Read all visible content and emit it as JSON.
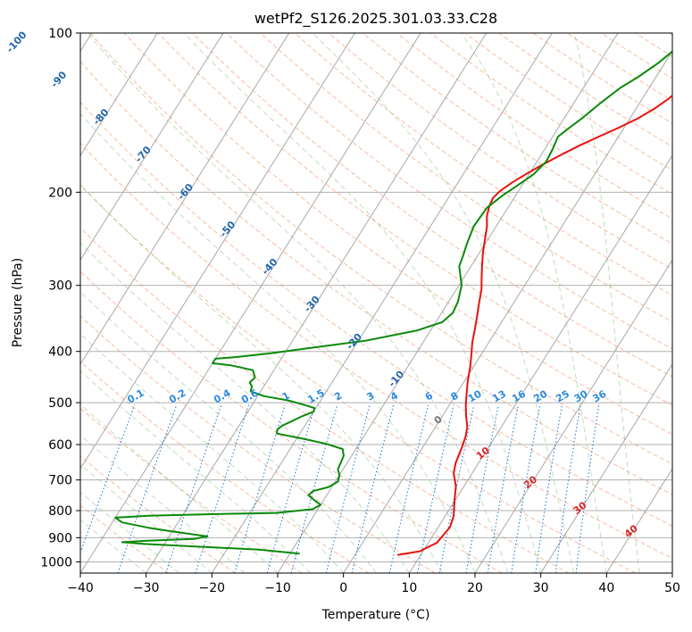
{
  "chart_data": {
    "type": "line",
    "title": "wetPf2_S126.2025.301.03.33.C28",
    "xlabel": "Temperature (°C)",
    "ylabel": "Pressure (hPa)",
    "xlim": [
      -40,
      50
    ],
    "ylim": [
      1050,
      100
    ],
    "y_scale": "log",
    "grid": true,
    "x_ticks": [
      -40,
      -30,
      -20,
      -10,
      0,
      10,
      20,
      30,
      40,
      50
    ],
    "y_ticks": [
      100,
      200,
      300,
      400,
      500,
      600,
      700,
      800,
      900,
      1000
    ],
    "series": [
      {
        "color": "#e8120c",
        "points": [
          [
            6.5,
            970
          ],
          [
            9.5,
            955
          ],
          [
            11.3,
            920
          ],
          [
            11.8,
            860
          ],
          [
            11.3,
            820
          ],
          [
            9.8,
            760
          ],
          [
            8.8,
            720
          ],
          [
            7.2,
            680
          ],
          [
            6.5,
            650
          ],
          [
            6.0,
            610
          ],
          [
            5.5,
            580
          ],
          [
            4.8,
            555
          ],
          [
            3.6,
            530
          ],
          [
            2.5,
            505
          ],
          [
            1.5,
            480
          ],
          [
            0.5,
            455
          ],
          [
            -0.4,
            430
          ],
          [
            -1.5,
            405
          ],
          [
            -2.5,
            385
          ],
          [
            -3.3,
            365
          ],
          [
            -4.2,
            345
          ],
          [
            -5.2,
            325
          ],
          [
            -6.2,
            305
          ],
          [
            -7.3,
            290
          ],
          [
            -8.4,
            275
          ],
          [
            -9.5,
            260
          ],
          [
            -10.5,
            245
          ],
          [
            -11.4,
            232
          ],
          [
            -12.4,
            222
          ],
          [
            -13.0,
            212
          ],
          [
            -13.2,
            205
          ],
          [
            -12.8,
            199
          ],
          [
            -11.8,
            192
          ],
          [
            -10.5,
            185
          ],
          [
            -9.0,
            178
          ],
          [
            -7.0,
            170
          ],
          [
            -5.0,
            163
          ],
          [
            -3.0,
            157
          ],
          [
            -0.8,
            151
          ],
          [
            1.2,
            145
          ],
          [
            2.8,
            139
          ],
          [
            4.0,
            133
          ],
          [
            5.0,
            127
          ],
          [
            5.8,
            121
          ],
          [
            6.3,
            116
          ],
          [
            6.7,
            111
          ],
          [
            7.3,
            106
          ],
          [
            8.2,
            102
          ],
          [
            9.5,
            100
          ]
        ]
      },
      {
        "color": "#0a8a0a",
        "points": [
          [
            -8.5,
            965
          ],
          [
            -15.0,
            948
          ],
          [
            -25.0,
            935
          ],
          [
            -33.0,
            925
          ],
          [
            -36.6,
            918
          ],
          [
            -33.0,
            912
          ],
          [
            -26.0,
            905
          ],
          [
            -24.2,
            895
          ],
          [
            -30.0,
            876
          ],
          [
            -34.0,
            862
          ],
          [
            -38.5,
            842
          ],
          [
            -40.0,
            825
          ],
          [
            -35.0,
            818
          ],
          [
            -25.0,
            812
          ],
          [
            -16.0,
            808
          ],
          [
            -10.8,
            795
          ],
          [
            -10.0,
            780
          ],
          [
            -11.8,
            760
          ],
          [
            -12.8,
            748
          ],
          [
            -12.5,
            735
          ],
          [
            -10.5,
            722
          ],
          [
            -9.6,
            705
          ],
          [
            -10.0,
            685
          ],
          [
            -10.8,
            668
          ],
          [
            -11.0,
            648
          ],
          [
            -11.2,
            630
          ],
          [
            -12.0,
            612
          ],
          [
            -15.0,
            598
          ],
          [
            -19.0,
            585
          ],
          [
            -23.5,
            572
          ],
          [
            -23.8,
            562
          ],
          [
            -23.4,
            552
          ],
          [
            -22.5,
            543
          ],
          [
            -21.5,
            532
          ],
          [
            -20.0,
            520
          ],
          [
            -20.2,
            512
          ],
          [
            -22.0,
            505
          ],
          [
            -25.0,
            495
          ],
          [
            -29.0,
            486
          ],
          [
            -31.5,
            476
          ],
          [
            -31.8,
            466
          ],
          [
            -32.5,
            458
          ],
          [
            -32.2,
            448
          ],
          [
            -33.2,
            434
          ],
          [
            -37.0,
            425
          ],
          [
            -40.0,
            421
          ],
          [
            -40.0,
            413
          ],
          [
            -37.0,
            410
          ],
          [
            -32.0,
            403
          ],
          [
            -26.0,
            393
          ],
          [
            -19.0,
            382
          ],
          [
            -12.0,
            365
          ],
          [
            -9.0,
            352
          ],
          [
            -8.3,
            338
          ],
          [
            -8.6,
            322
          ],
          [
            -9.6,
            300
          ],
          [
            -11.8,
            276
          ],
          [
            -12.2,
            264
          ],
          [
            -12.8,
            250
          ],
          [
            -13.4,
            232
          ],
          [
            -13.2,
            214
          ],
          [
            -12.0,
            203
          ],
          [
            -10.8,
            195
          ],
          [
            -9.3,
            185
          ],
          [
            -8.6,
            175
          ],
          [
            -8.8,
            166
          ],
          [
            -9.2,
            157
          ],
          [
            -8.3,
            151
          ],
          [
            -7.3,
            145
          ],
          [
            -6.0,
            136
          ],
          [
            -4.4,
            127
          ],
          [
            -2.7,
            121
          ],
          [
            -1.0,
            114
          ],
          [
            0.3,
            107
          ],
          [
            0.9,
            102
          ],
          [
            0.9,
            100
          ]
        ]
      }
    ],
    "dry_adiabat_labels": [
      "-100",
      "-90",
      "-80",
      "-70",
      "-60",
      "-50",
      "-40",
      "-30",
      "-20",
      "-10"
    ],
    "moist_adiabat_labels": [
      "0",
      "10",
      "20",
      "30",
      "40"
    ],
    "mixing_ratio_labels": [
      "0.1",
      "0.2",
      "0.4",
      "0.6",
      "1",
      "1.5",
      "2",
      "3",
      "4",
      "6",
      "8",
      "10",
      "13",
      "16",
      "20",
      "25",
      "30",
      "36"
    ]
  }
}
